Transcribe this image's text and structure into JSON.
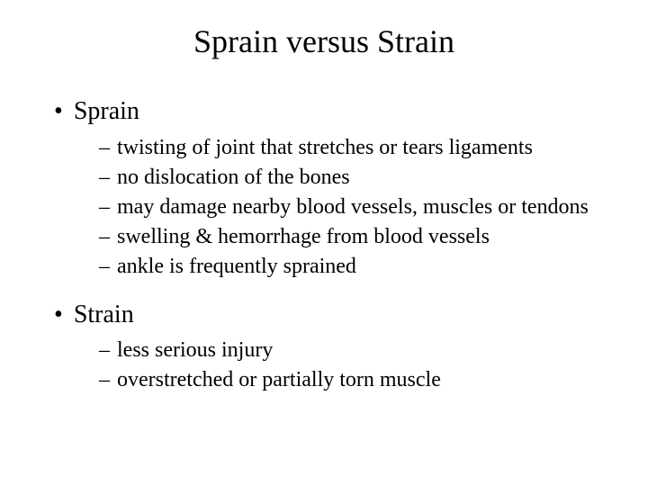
{
  "title": "Sprain versus Strain",
  "sections": [
    {
      "heading": "Sprain",
      "items": [
        "twisting of joint that stretches or tears ligaments",
        "no dislocation of the bones",
        "may damage nearby blood vessels, muscles or tendons",
        "swelling & hemorrhage from blood vessels",
        "ankle is frequently sprained"
      ]
    },
    {
      "heading": "Strain",
      "items": [
        "less serious injury",
        "overstretched or partially torn muscle"
      ]
    }
  ],
  "colors": {
    "background": "#ffffff",
    "text": "#000000"
  },
  "typography": {
    "font_family": "Times New Roman",
    "title_fontsize": 36,
    "heading_fontsize": 28,
    "subitem_fontsize": 24
  }
}
